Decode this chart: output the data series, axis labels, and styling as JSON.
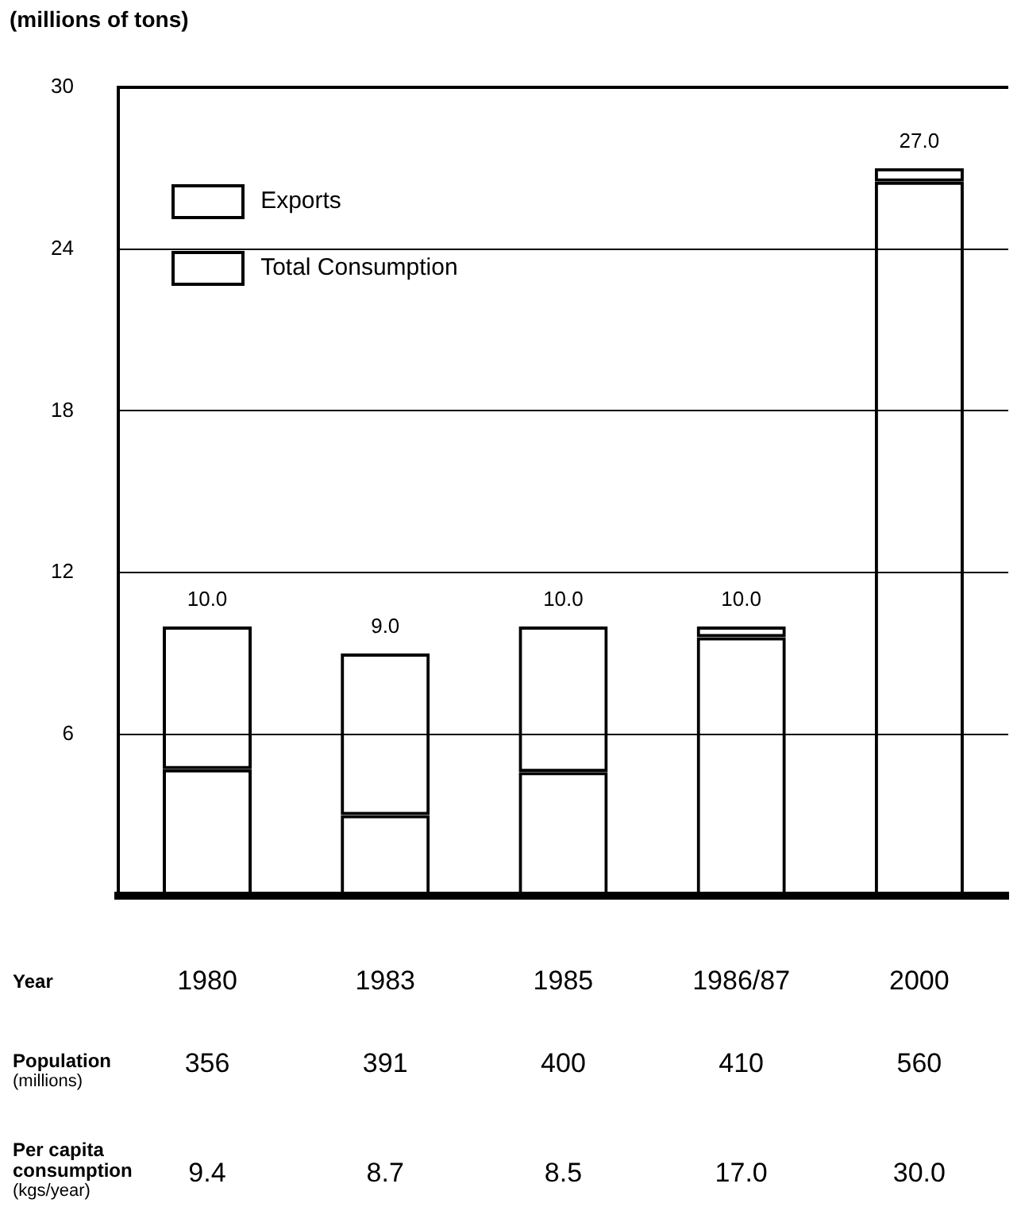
{
  "chart_data": {
    "type": "bar",
    "ylabel": "(millions of tons)",
    "categories": [
      "1980",
      "1983",
      "1985",
      "1986/87",
      "2000"
    ],
    "series": [
      {
        "name": "Total Consumption",
        "color": "#000000",
        "values": [
          4.7,
          3.0,
          4.6,
          9.6,
          26.5
        ]
      },
      {
        "name": "Exports",
        "color": "#000000",
        "values": [
          5.3,
          6.0,
          5.4,
          0.4,
          0.5
        ]
      }
    ],
    "stacked": true,
    "totals": [
      "10.0",
      "9.0",
      "10.0",
      "10.0",
      "27.0"
    ],
    "ylim": [
      0,
      30
    ],
    "yticks": [
      {
        "value": 0,
        "label": null
      },
      6,
      12,
      18,
      24,
      30
    ],
    "grid": "y",
    "legend": "top left",
    "annotations": [
      "Year",
      "Population\n(millions)",
      "356",
      "391",
      "400",
      "410",
      "560",
      "Per capita\nconsumption\n(kgs/year)",
      "9.4",
      "8.7",
      "8.5",
      "17.0",
      "30.0"
    ]
  }
}
